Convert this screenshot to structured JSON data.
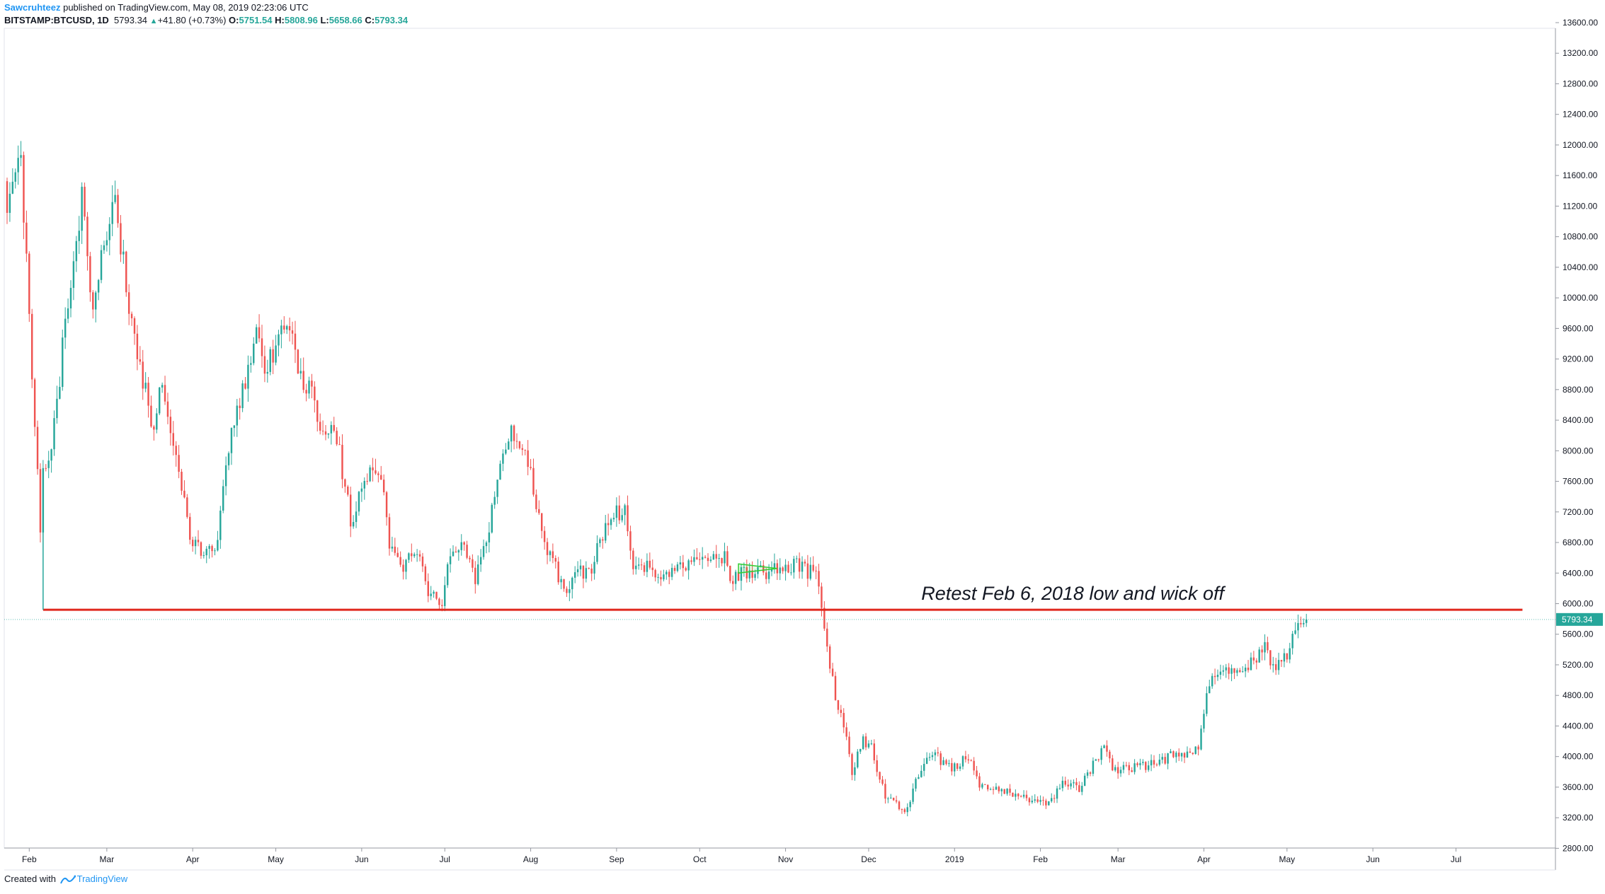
{
  "header": {
    "author": "Sawcruhteez",
    "published_text": " published on TradingView.com, May 08, 2019 02:23:06 UTC",
    "symbol": "BITSTAMP:BTCUSD, 1D",
    "last": "5793.34",
    "change": "+41.80 (+0.73%)",
    "o_label": "O:",
    "o_value": "5751.54",
    "h_label": "H:",
    "h_value": "5808.96",
    "l_label": "L:",
    "l_value": "5658.66",
    "c_label": "C:",
    "c_value": "5793.34"
  },
  "footer": {
    "created_with": "Created with",
    "brand": "TradingView"
  },
  "colors": {
    "up": "#26a69a",
    "down": "#ef5350",
    "support_line": "#e0281d",
    "price_tag": "#26a69a",
    "axis": "#9598a1",
    "pattern": "#32cd32"
  },
  "chart_data": {
    "type": "candlestick",
    "symbol": "BITSTAMP:BTCUSD",
    "interval": "1D",
    "y_axis": {
      "ylim": [
        2600,
        13600
      ],
      "ticks": [
        "13600.00",
        "13200.00",
        "12800.00",
        "12400.00",
        "12000.00",
        "11600.00",
        "11200.00",
        "10800.00",
        "10400.00",
        "10000.00",
        "9600.00",
        "9200.00",
        "8800.00",
        "8400.00",
        "8000.00",
        "7600.00",
        "7200.00",
        "6800.00",
        "6400.00",
        "6000.00",
        "5600.00",
        "5200.00",
        "4800.00",
        "4400.00",
        "4000.00",
        "3600.00",
        "3200.00",
        "2800.00"
      ],
      "position": "right"
    },
    "x_axis": {
      "start": "2018-01-24",
      "end": "2019-07-30",
      "ticks": [
        {
          "label": "Feb",
          "date": "2018-02-01"
        },
        {
          "label": "Mar",
          "date": "2018-03-01"
        },
        {
          "label": "Apr",
          "date": "2018-04-01"
        },
        {
          "label": "May",
          "date": "2018-05-01"
        },
        {
          "label": "Jun",
          "date": "2018-06-01"
        },
        {
          "label": "Jul",
          "date": "2018-07-01"
        },
        {
          "label": "Aug",
          "date": "2018-08-01"
        },
        {
          "label": "Sep",
          "date": "2018-09-01"
        },
        {
          "label": "Oct",
          "date": "2018-10-01"
        },
        {
          "label": "Nov",
          "date": "2018-11-01"
        },
        {
          "label": "Dec",
          "date": "2018-12-01"
        },
        {
          "label": "2019",
          "date": "2019-01-01"
        },
        {
          "label": "Feb",
          "date": "2019-02-01"
        },
        {
          "label": "Mar",
          "date": "2019-03-01"
        },
        {
          "label": "Apr",
          "date": "2019-04-01"
        },
        {
          "label": "May",
          "date": "2019-05-01"
        },
        {
          "label": "Jun",
          "date": "2019-06-01"
        },
        {
          "label": "Jul",
          "date": "2019-07-01"
        }
      ]
    },
    "anchors": [
      [
        "2018-01-24",
        11300
      ],
      [
        "2018-01-29",
        11800
      ],
      [
        "2018-02-01",
        9700
      ],
      [
        "2018-02-05",
        7000
      ],
      [
        "2018-02-06",
        7700
      ],
      [
        "2018-02-10",
        8300
      ],
      [
        "2018-02-15",
        10000
      ],
      [
        "2018-02-20",
        11300
      ],
      [
        "2018-02-24",
        9700
      ],
      [
        "2018-02-27",
        10600
      ],
      [
        "2018-03-04",
        11400
      ],
      [
        "2018-03-06",
        10700
      ],
      [
        "2018-03-12",
        9200
      ],
      [
        "2018-03-18",
        8300
      ],
      [
        "2018-03-21",
        8900
      ],
      [
        "2018-03-26",
        8000
      ],
      [
        "2018-03-31",
        6900
      ],
      [
        "2018-04-06",
        6650
      ],
      [
        "2018-04-10",
        6800
      ],
      [
        "2018-04-13",
        7900
      ],
      [
        "2018-04-20",
        8900
      ],
      [
        "2018-04-24",
        9600
      ],
      [
        "2018-04-27",
        8900
      ],
      [
        "2018-05-03",
        9700
      ],
      [
        "2018-05-05",
        9800
      ],
      [
        "2018-05-10",
        9000
      ],
      [
        "2018-05-14",
        8700
      ],
      [
        "2018-05-18",
        8200
      ],
      [
        "2018-05-22",
        8400
      ],
      [
        "2018-05-28",
        7100
      ],
      [
        "2018-06-03",
        7650
      ],
      [
        "2018-06-08",
        7700
      ],
      [
        "2018-06-11",
        6800
      ],
      [
        "2018-06-16",
        6450
      ],
      [
        "2018-06-20",
        6750
      ],
      [
        "2018-06-25",
        6200
      ],
      [
        "2018-06-29",
        5900
      ],
      [
        "2018-07-03",
        6600
      ],
      [
        "2018-07-08",
        6750
      ],
      [
        "2018-07-12",
        6300
      ],
      [
        "2018-07-16",
        6750
      ],
      [
        "2018-07-19",
        7400
      ],
      [
        "2018-07-24",
        8250
      ],
      [
        "2018-07-27",
        8200
      ],
      [
        "2018-08-01",
        7650
      ],
      [
        "2018-08-05",
        7000
      ],
      [
        "2018-08-09",
        6500
      ],
      [
        "2018-08-14",
        6200
      ],
      [
        "2018-08-18",
        6400
      ],
      [
        "2018-08-23",
        6500
      ],
      [
        "2018-08-29",
        7050
      ],
      [
        "2018-09-04",
        7300
      ],
      [
        "2018-09-07",
        6450
      ],
      [
        "2018-09-13",
        6450
      ],
      [
        "2018-09-20",
        6400
      ],
      [
        "2018-09-25",
        6550
      ],
      [
        "2018-10-03",
        6550
      ],
      [
        "2018-10-10",
        6600
      ],
      [
        "2018-10-12",
        6250
      ],
      [
        "2018-10-16",
        6450
      ],
      [
        "2018-10-25",
        6400
      ],
      [
        "2018-11-07",
        6500
      ],
      [
        "2018-11-13",
        6300
      ],
      [
        "2018-11-15",
        5650
      ],
      [
        "2018-11-19",
        4800
      ],
      [
        "2018-11-22",
        4400
      ],
      [
        "2018-11-25",
        3800
      ],
      [
        "2018-11-29",
        4200
      ],
      [
        "2018-12-02",
        4100
      ],
      [
        "2018-12-07",
        3500
      ],
      [
        "2018-12-14",
        3250
      ],
      [
        "2018-12-17",
        3550
      ],
      [
        "2018-12-21",
        3950
      ],
      [
        "2018-12-24",
        4050
      ],
      [
        "2018-12-30",
        3850
      ],
      [
        "2019-01-07",
        4000
      ],
      [
        "2019-01-10",
        3650
      ],
      [
        "2019-01-20",
        3550
      ],
      [
        "2019-01-28",
        3450
      ],
      [
        "2019-02-06",
        3400
      ],
      [
        "2019-02-08",
        3650
      ],
      [
        "2019-02-15",
        3600
      ],
      [
        "2019-02-24",
        4100
      ],
      [
        "2019-02-28",
        3800
      ],
      [
        "2019-03-10",
        3880
      ],
      [
        "2019-03-20",
        4000
      ],
      [
        "2019-03-30",
        4100
      ],
      [
        "2019-04-02",
        4900
      ],
      [
        "2019-04-08",
        5200
      ],
      [
        "2019-04-15",
        5100
      ],
      [
        "2019-04-23",
        5450
      ],
      [
        "2019-04-26",
        5150
      ],
      [
        "2019-05-01",
        5350
      ],
      [
        "2019-05-06",
        5800
      ],
      [
        "2019-05-08",
        5793.34
      ]
    ],
    "last_price": "5793.34",
    "annotations": {
      "support_line": {
        "y": 5920,
        "x_start": "2018-02-06",
        "x_end": "2019-07-25"
      },
      "text": "Retest Feb 6, 2018 low and wick off",
      "pattern": {
        "label": "",
        "x_start": "2018-10-15",
        "x_end": "2018-10-29",
        "y_top": 6520,
        "y_bottom": 6400
      }
    },
    "grid": false,
    "legend": "none"
  }
}
